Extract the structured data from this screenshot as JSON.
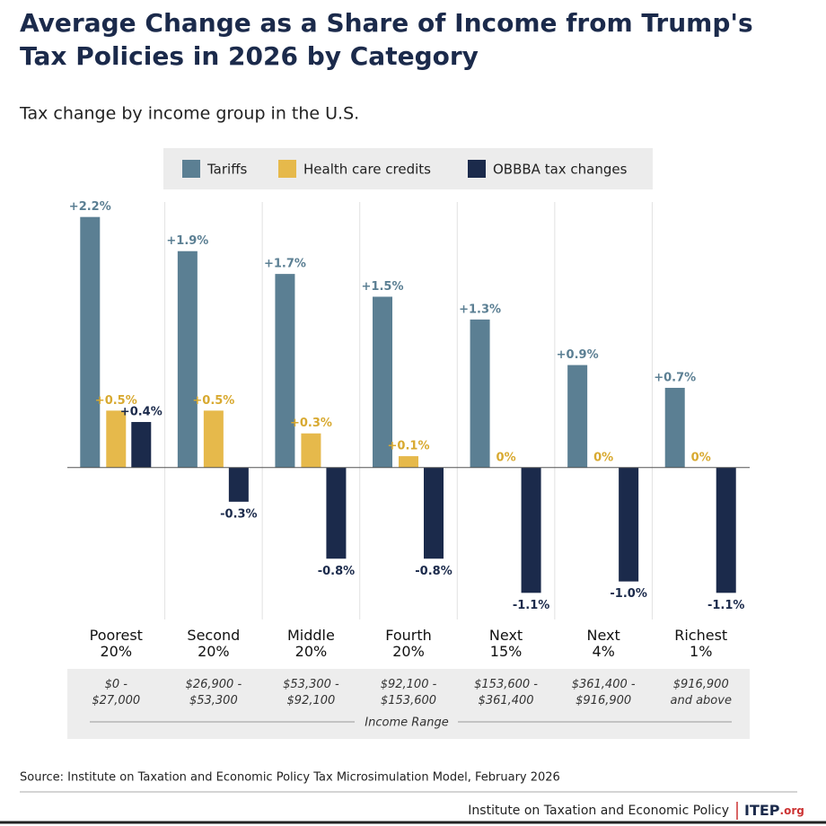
{
  "chart_data": {
    "type": "bar",
    "title": "Average Change as a Share of Income from Trump's\nTax Policies in 2026 by Category",
    "subtitle": "Tax change by income group in the U.S.",
    "categories": [
      "Poorest\n20%",
      "Second\n20%",
      "Middle\n20%",
      "Fourth\n20%",
      "Next\n15%",
      "Next\n4%",
      "Richest\n1%"
    ],
    "income_ranges": [
      "$0 -\n$27,000",
      "$26,900 -\n$53,300",
      "$53,300 -\n$92,100",
      "$92,100 -\n$153,600",
      "$153,600 -\n$361,400",
      "$361,400 -\n$916,900",
      "$916,900\nand above"
    ],
    "income_range_label": "Income Range",
    "series": [
      {
        "name": "Tariffs",
        "color": "#5b7f93",
        "values": [
          2.2,
          1.9,
          1.7,
          1.5,
          1.3,
          0.9,
          0.7
        ],
        "value_labels": [
          "+2.2%",
          "+1.9%",
          "+1.7%",
          "+1.5%",
          "+1.3%",
          "+0.9%",
          "+0.7%"
        ]
      },
      {
        "name": "Health care credits",
        "color": "#e6b94b",
        "values": [
          0.5,
          0.5,
          0.3,
          0.1,
          0,
          0,
          0
        ],
        "value_labels": [
          "+0.5%",
          "+0.5%",
          "+0.3%",
          "+0.1%",
          "0%",
          "0%",
          "0%"
        ]
      },
      {
        "name": "OBBBA tax changes",
        "color": "#1b2a4b",
        "values": [
          0.4,
          -0.3,
          -0.8,
          -0.8,
          -1.1,
          -1.0,
          -1.1
        ],
        "value_labels": [
          "+0.4%",
          "-0.3%",
          "-0.8%",
          "-0.8%",
          "-1.1%",
          "-1.0%",
          "-1.1%"
        ]
      }
    ],
    "ylim": [
      -1.2,
      2.3
    ],
    "source": "Source: Institute on Taxation and Economic Policy Tax Microsimulation Model, February 2026",
    "organization": "Institute on Taxation and Economic Policy",
    "logo": "ITEP",
    "logo_suffix": ".org"
  }
}
